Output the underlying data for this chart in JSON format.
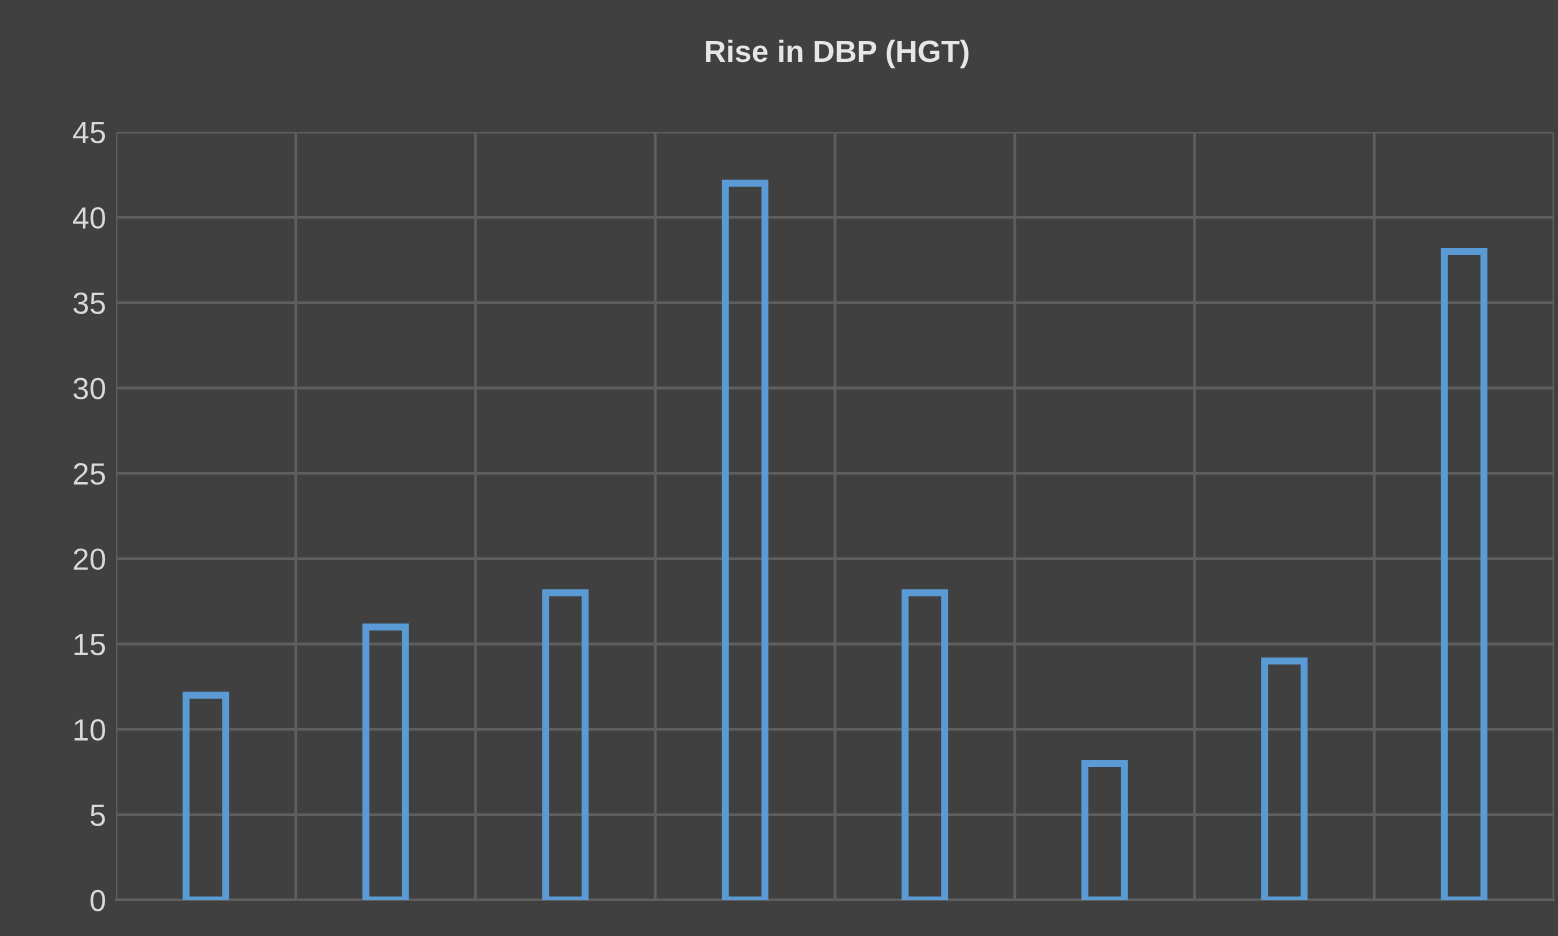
{
  "chart_data": {
    "type": "bar",
    "title": "Rise in DBP (HGT)",
    "categories": [
      null,
      null,
      null,
      null,
      null,
      null,
      null,
      null
    ],
    "values": [
      12,
      16,
      18,
      42,
      18,
      8,
      14,
      38
    ],
    "color": "#5b9bd5",
    "ylim": [
      0,
      45
    ],
    "yticks": [
      0,
      5,
      10,
      15,
      20,
      25,
      30,
      35,
      40,
      45
    ],
    "grid": true,
    "tick_labels": "y"
  }
}
